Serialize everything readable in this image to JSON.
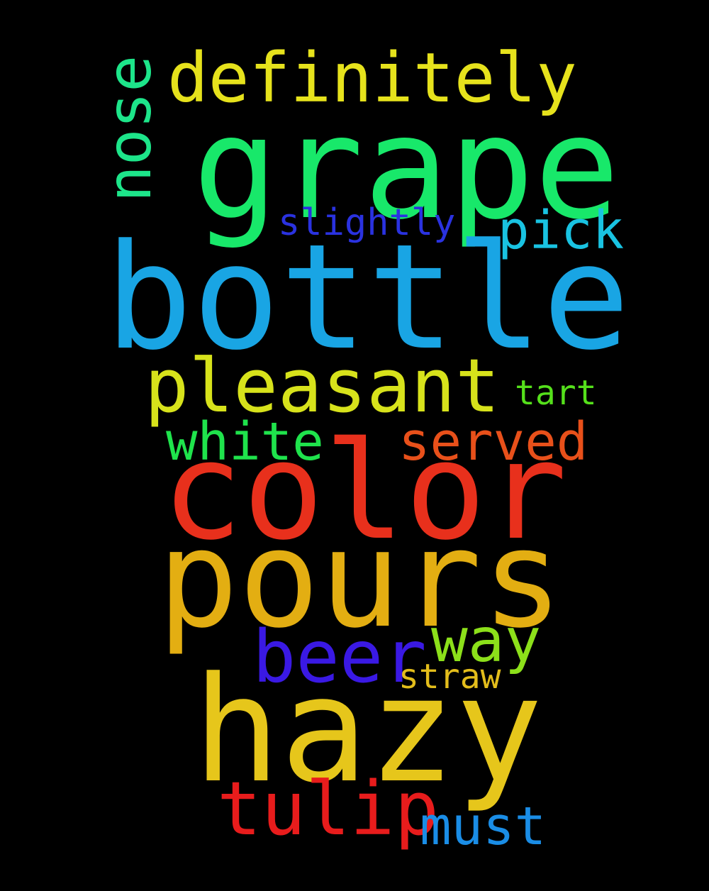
{
  "words": [
    {
      "key": "grape",
      "text": "grape",
      "color": "#18e86a"
    },
    {
      "key": "bottle",
      "text": "bottle",
      "color": "#19a5e4"
    },
    {
      "key": "color",
      "text": "color",
      "color": "#e8301c"
    },
    {
      "key": "pours",
      "text": "pours",
      "color": "#e3ae12"
    },
    {
      "key": "hazy",
      "text": "hazy",
      "color": "#e6c61b"
    },
    {
      "key": "definitely",
      "text": "definitely",
      "color": "#e6e21c"
    },
    {
      "key": "nose",
      "text": "nose",
      "color": "#1de58a"
    },
    {
      "key": "pleasant",
      "text": "pleasant",
      "color": "#d7e21b"
    },
    {
      "key": "slightly",
      "text": "slightly",
      "color": "#2a32e0"
    },
    {
      "key": "pick",
      "text": "pick",
      "color": "#19c3e2"
    },
    {
      "key": "tart",
      "text": "tart",
      "color": "#55e01b"
    },
    {
      "key": "white",
      "text": "white",
      "color": "#1fe34c"
    },
    {
      "key": "served",
      "text": "served",
      "color": "#e8501a"
    },
    {
      "key": "way",
      "text": "way",
      "color": "#8ce01a"
    },
    {
      "key": "beer",
      "text": "beer",
      "color": "#3a19e4"
    },
    {
      "key": "straw",
      "text": "straw",
      "color": "#e3bd1b"
    },
    {
      "key": "tulip",
      "text": "tulip",
      "color": "#e81c1c"
    },
    {
      "key": "must",
      "text": "must",
      "color": "#1a8de6"
    }
  ]
}
